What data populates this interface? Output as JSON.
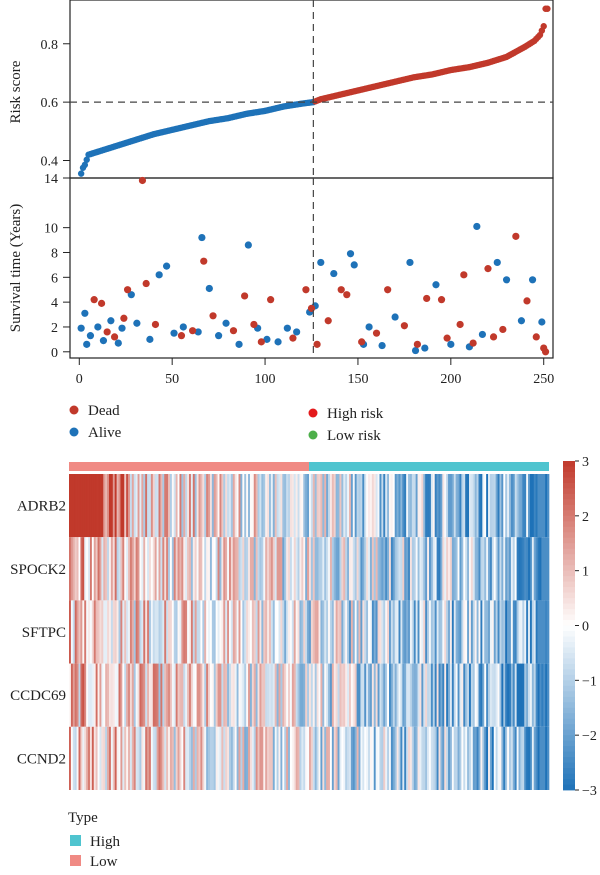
{
  "colors": {
    "high": "#C1392B",
    "low": "#1E72B8",
    "dead": "#C1392B",
    "alive": "#1E72B8",
    "legend_high_risk": "#E41A1C",
    "legend_low_risk": "#4DAF4A",
    "type_high": "#4FC4CF",
    "type_low": "#F08A84"
  },
  "chart_data": [
    {
      "type": "scatter",
      "name": "risk_score_curve",
      "ylabel": "Risk score",
      "xlim": [
        -5,
        255
      ],
      "ylim": [
        0.34,
        0.95
      ],
      "yticks": [
        0.4,
        0.6,
        0.8
      ],
      "ytick_labels": [
        "0.4",
        "0.6",
        "0.8"
      ],
      "cutoff_x": 126,
      "cutoff_y": 0.6,
      "n_patients": 252,
      "score_anchors": [
        [
          1,
          0.355
        ],
        [
          2,
          0.375
        ],
        [
          3,
          0.385
        ],
        [
          5,
          0.42
        ],
        [
          10,
          0.43
        ],
        [
          20,
          0.45
        ],
        [
          30,
          0.47
        ],
        [
          40,
          0.49
        ],
        [
          50,
          0.505
        ],
        [
          60,
          0.52
        ],
        [
          70,
          0.535
        ],
        [
          80,
          0.545
        ],
        [
          90,
          0.56
        ],
        [
          100,
          0.57
        ],
        [
          110,
          0.585
        ],
        [
          120,
          0.595
        ],
        [
          126,
          0.6
        ],
        [
          130,
          0.61
        ],
        [
          140,
          0.625
        ],
        [
          150,
          0.64
        ],
        [
          160,
          0.655
        ],
        [
          170,
          0.67
        ],
        [
          180,
          0.685
        ],
        [
          190,
          0.695
        ],
        [
          200,
          0.71
        ],
        [
          210,
          0.72
        ],
        [
          220,
          0.735
        ],
        [
          230,
          0.755
        ],
        [
          240,
          0.79
        ],
        [
          245,
          0.81
        ],
        [
          248,
          0.83
        ],
        [
          250,
          0.86
        ],
        [
          251,
          0.92
        ]
      ]
    },
    {
      "type": "scatter",
      "name": "survival_status",
      "ylabel": "Survival time (Years)",
      "xlim": [
        -5,
        255
      ],
      "ylim": [
        -0.5,
        14
      ],
      "yticks": [
        0,
        2,
        4,
        6,
        8,
        10,
        14
      ],
      "ytick_labels": [
        "0",
        "2",
        "4",
        "6",
        "8",
        "10",
        "14"
      ],
      "xticks": [
        0,
        50,
        100,
        150,
        200,
        250
      ],
      "xtick_labels": [
        "0",
        "50",
        "100",
        "150",
        "200",
        "250"
      ],
      "points_dead": [
        [
          34,
          13.8
        ],
        [
          67,
          7.3
        ],
        [
          89,
          4.5
        ],
        [
          103,
          4.2
        ],
        [
          122,
          5.0
        ],
        [
          125,
          3.5
        ],
        [
          141,
          5.0
        ],
        [
          144,
          4.6
        ],
        [
          166,
          5.0
        ],
        [
          187,
          4.3
        ],
        [
          195,
          4.2
        ],
        [
          205,
          2.2
        ],
        [
          207,
          6.2
        ],
        [
          220,
          6.7
        ],
        [
          223,
          1.2
        ],
        [
          235,
          9.3
        ],
        [
          241,
          4.1
        ],
        [
          8,
          4.2
        ],
        [
          12,
          3.9
        ],
        [
          15,
          1.6
        ],
        [
          19,
          1.2
        ],
        [
          24,
          2.7
        ],
        [
          26,
          5.0
        ],
        [
          36,
          5.5
        ],
        [
          41,
          2.2
        ],
        [
          55,
          1.3
        ],
        [
          61,
          1.7
        ],
        [
          72,
          2.9
        ],
        [
          83,
          1.7
        ],
        [
          94,
          2.2
        ],
        [
          98,
          0.8
        ],
        [
          115,
          1.1
        ],
        [
          128,
          0.6
        ],
        [
          134,
          2.5
        ],
        [
          152,
          0.8
        ],
        [
          160,
          1.5
        ],
        [
          175,
          2.1
        ],
        [
          182,
          0.6
        ],
        [
          198,
          1.1
        ],
        [
          212,
          0.7
        ],
        [
          228,
          1.8
        ],
        [
          246,
          1.2
        ],
        [
          250,
          0.3
        ],
        [
          251,
          0.0
        ]
      ],
      "points_alive": [
        [
          1,
          1.9
        ],
        [
          3,
          3.1
        ],
        [
          4,
          0.6
        ],
        [
          6,
          1.3
        ],
        [
          10,
          2.0
        ],
        [
          13,
          0.9
        ],
        [
          17,
          2.5
        ],
        [
          21,
          0.7
        ],
        [
          23,
          1.9
        ],
        [
          28,
          4.6
        ],
        [
          31,
          2.3
        ],
        [
          38,
          1.0
        ],
        [
          43,
          6.2
        ],
        [
          47,
          6.9
        ],
        [
          51,
          1.5
        ],
        [
          56,
          2.0
        ],
        [
          64,
          1.6
        ],
        [
          66,
          9.2
        ],
        [
          70,
          5.1
        ],
        [
          75,
          1.3
        ],
        [
          79,
          2.3
        ],
        [
          86,
          0.6
        ],
        [
          91,
          8.6
        ],
        [
          96,
          1.9
        ],
        [
          101,
          1.0
        ],
        [
          107,
          0.8
        ],
        [
          112,
          1.9
        ],
        [
          117,
          1.6
        ],
        [
          124,
          3.2
        ],
        [
          127,
          3.7
        ],
        [
          130,
          7.2
        ],
        [
          137,
          6.3
        ],
        [
          146,
          7.9
        ],
        [
          148,
          7.0
        ],
        [
          153,
          0.6
        ],
        [
          156,
          2.0
        ],
        [
          163,
          0.5
        ],
        [
          170,
          2.8
        ],
        [
          178,
          7.2
        ],
        [
          181,
          0.1
        ],
        [
          186,
          0.3
        ],
        [
          192,
          5.4
        ],
        [
          200,
          0.6
        ],
        [
          210,
          0.4
        ],
        [
          214,
          10.1
        ],
        [
          217,
          1.4
        ],
        [
          225,
          7.2
        ],
        [
          230,
          5.8
        ],
        [
          238,
          2.5
        ],
        [
          244,
          5.8
        ],
        [
          249,
          2.4
        ]
      ]
    },
    {
      "type": "heatmap",
      "name": "gene_expression",
      "rows": [
        "ADRB2",
        "SPOCK2",
        "SFTPC",
        "CCDC69",
        "CCND2"
      ],
      "colorbar_ticks": [
        3,
        2,
        1,
        0,
        -1,
        -2,
        -3
      ],
      "colorbar_labels": [
        "3",
        "2",
        "1",
        "0",
        "−1",
        "−2",
        "−3"
      ],
      "vmin": -3,
      "vmax": 3,
      "n_columns": 252,
      "low_group_columns": 126,
      "palette": [
        "#1E72B8",
        "#FFFFFF",
        "#C1392B"
      ]
    }
  ],
  "legend_status": {
    "dead": "Dead",
    "alive": "Alive"
  },
  "legend_risk": {
    "high": "High risk",
    "low": "Low risk"
  },
  "legend_type": {
    "title": "Type",
    "high": "High",
    "low": "Low"
  }
}
